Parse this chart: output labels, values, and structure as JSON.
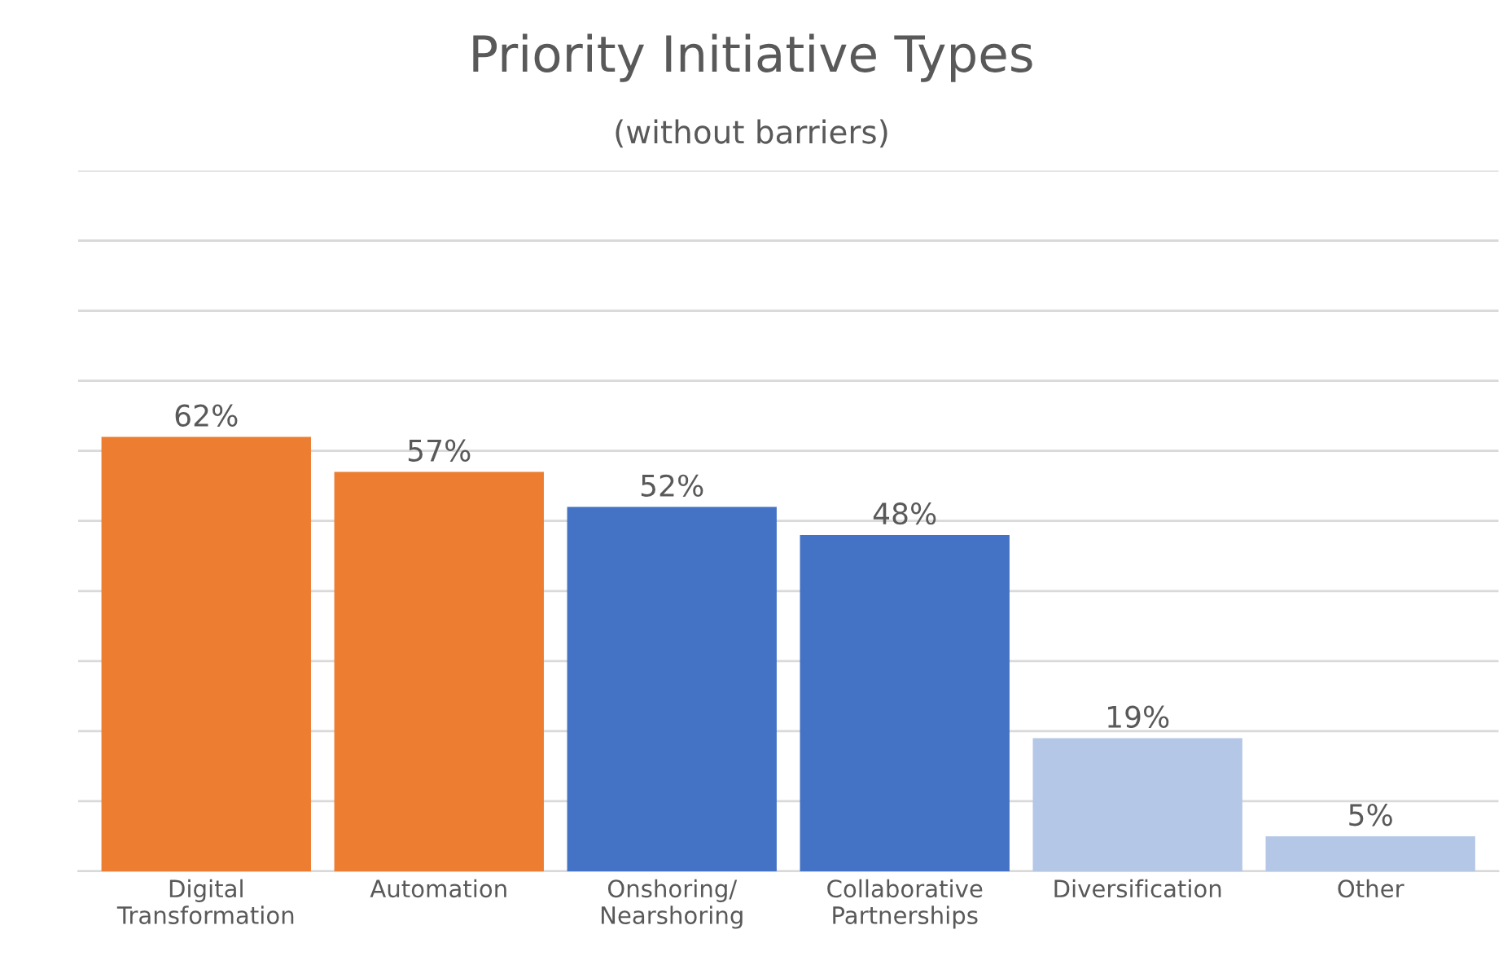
{
  "chart_data": {
    "type": "bar",
    "title": "Priority Initiative Types",
    "subtitle": "(without barriers)",
    "categories": [
      "Digital\nTransformation",
      "Automation",
      "Onshoring/\nNearshoring",
      "Collaborative\nPartnerships",
      "Diversification",
      "Other"
    ],
    "values": [
      62,
      57,
      52,
      48,
      19,
      5
    ],
    "colors": [
      "#ed7d31",
      "#ed7d31",
      "#4472c4",
      "#4472c4",
      "#b4c7e7",
      "#b4c7e7"
    ],
    "value_labels": [
      "62%",
      "57%",
      "52%",
      "48%",
      "19%",
      "5%"
    ],
    "ylim": [
      0,
      100
    ],
    "yticks": [
      {
        "value": 0,
        "label": null
      },
      {
        "value": 10,
        "label": null
      },
      {
        "value": 20,
        "label": null
      },
      {
        "value": 30,
        "label": null
      },
      {
        "value": 40,
        "label": null
      },
      {
        "value": 50,
        "label": null
      },
      {
        "value": 60,
        "label": null
      },
      {
        "value": 70,
        "label": null
      },
      {
        "value": 80,
        "label": null
      },
      {
        "value": 90,
        "label": null
      },
      {
        "value": 100,
        "label": null
      }
    ],
    "grid": "y",
    "tick_labels": "x"
  }
}
